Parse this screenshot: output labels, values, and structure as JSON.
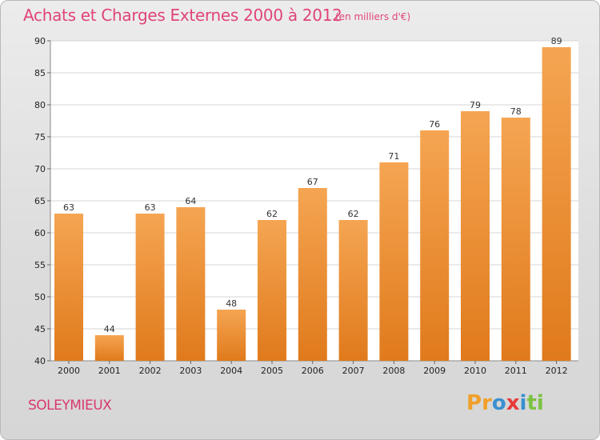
{
  "title": "Achats et Charges Externes 2000 à 2012",
  "subtitle": "(en milliers d'€)",
  "place": "SOLEYMIEUX",
  "logo": {
    "text": "Proxiti",
    "letters": [
      "P",
      "r",
      "o",
      "x",
      "i",
      "t",
      "i"
    ],
    "colors": [
      "#f0a02a",
      "#f0a02a",
      "#3a8fd0",
      "#e83a3a",
      "#3a8fd0",
      "#7cc242",
      "#7cc242"
    ]
  },
  "colors": {
    "bar_light": "#f5a552",
    "bar_dark": "#e07a1c",
    "title": "#e0447a"
  },
  "chart_data": {
    "type": "bar",
    "title": "Achats et Charges Externes 2000 à 2012",
    "subtitle": "(en milliers d'€)",
    "categories": [
      "2000",
      "2001",
      "2002",
      "2003",
      "2004",
      "2005",
      "2006",
      "2007",
      "2008",
      "2009",
      "2010",
      "2011",
      "2012"
    ],
    "values": [
      63,
      44,
      63,
      64,
      48,
      62,
      67,
      62,
      71,
      76,
      79,
      78,
      89
    ],
    "ylim": [
      40,
      90
    ],
    "yticks": [
      40,
      45,
      50,
      55,
      60,
      65,
      70,
      75,
      80,
      85,
      90
    ],
    "grid": true,
    "data_labels": true
  }
}
